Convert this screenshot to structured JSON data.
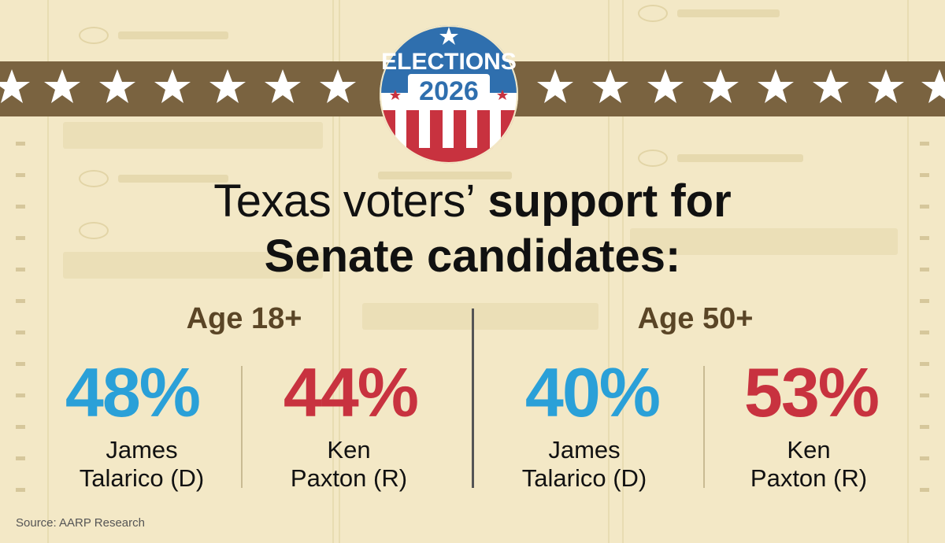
{
  "badge": {
    "line1": "ELECTIONS",
    "line2": "2026"
  },
  "title": {
    "part_light": "Texas voters’",
    "part_bold": "support for",
    "line2": "Senate candidates:"
  },
  "chart_data": {
    "type": "table",
    "title": "Texas voters’ support for Senate candidates:",
    "groups": [
      {
        "label": "Age 18+",
        "candidates": [
          {
            "name_line1": "James",
            "name_line2": "Talarico (D)",
            "value": 48,
            "label": "48%",
            "color": "#2aa0d8"
          },
          {
            "name_line1": "Ken",
            "name_line2": "Paxton (R)",
            "value": 44,
            "label": "44%",
            "color": "#c8323f"
          }
        ]
      },
      {
        "label": "Age 50+",
        "candidates": [
          {
            "name_line1": "James",
            "name_line2": "Talarico (D)",
            "value": 40,
            "label": "40%",
            "color": "#2aa0d8"
          },
          {
            "name_line1": "Ken",
            "name_line2": "Paxton (R)",
            "value": 53,
            "label": "53%",
            "color": "#c8323f"
          }
        ]
      }
    ]
  },
  "source": "Source: AARP Research",
  "colors": {
    "democrat": "#2aa0d8",
    "republican": "#c8323f",
    "banner": "#7a6340",
    "background": "#f3e8c6",
    "age_label": "#5a4526"
  }
}
